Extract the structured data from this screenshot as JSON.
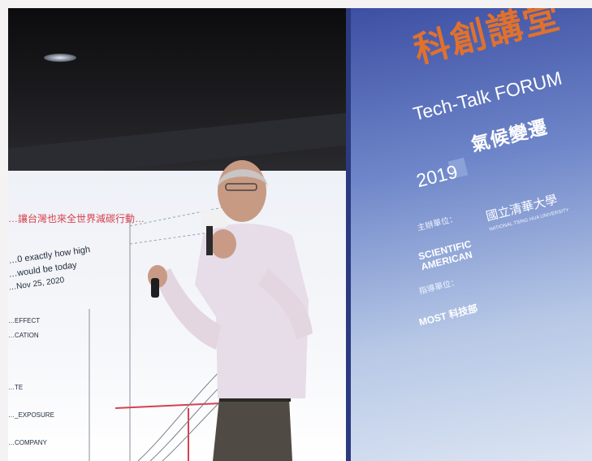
{
  "banner": {
    "title_cn": "科創講堂",
    "title_en": "Tech-Talk FORUM",
    "year": "2019",
    "subtitle_cn": "氣候變遷",
    "organizer_label": "主辦單位：",
    "sponsor_label": "指導單位：",
    "scientific_american": "SCIENTIFIC AMERICAN",
    "nthu": "國立清華大學",
    "nthu_en": "NATIONAL TSING HUA UNIVERSITY",
    "most": "MOST 科技部"
  },
  "screen": {
    "heading": "…讓台灣也來全世界減碳行動…",
    "line1": "…0 exactly how high",
    "line2": "…would be today",
    "line3": "…Nov 25, 2020",
    "row1": "…EFFECT",
    "row2": "…CATION",
    "row3": "…TE",
    "row4": "…_EXPOSURE",
    "row5": "…COMPANY"
  },
  "colors": {
    "banner_blue": "#3d4fa3",
    "title_orange": "#e0712d",
    "screen_red": "#d8404d"
  }
}
